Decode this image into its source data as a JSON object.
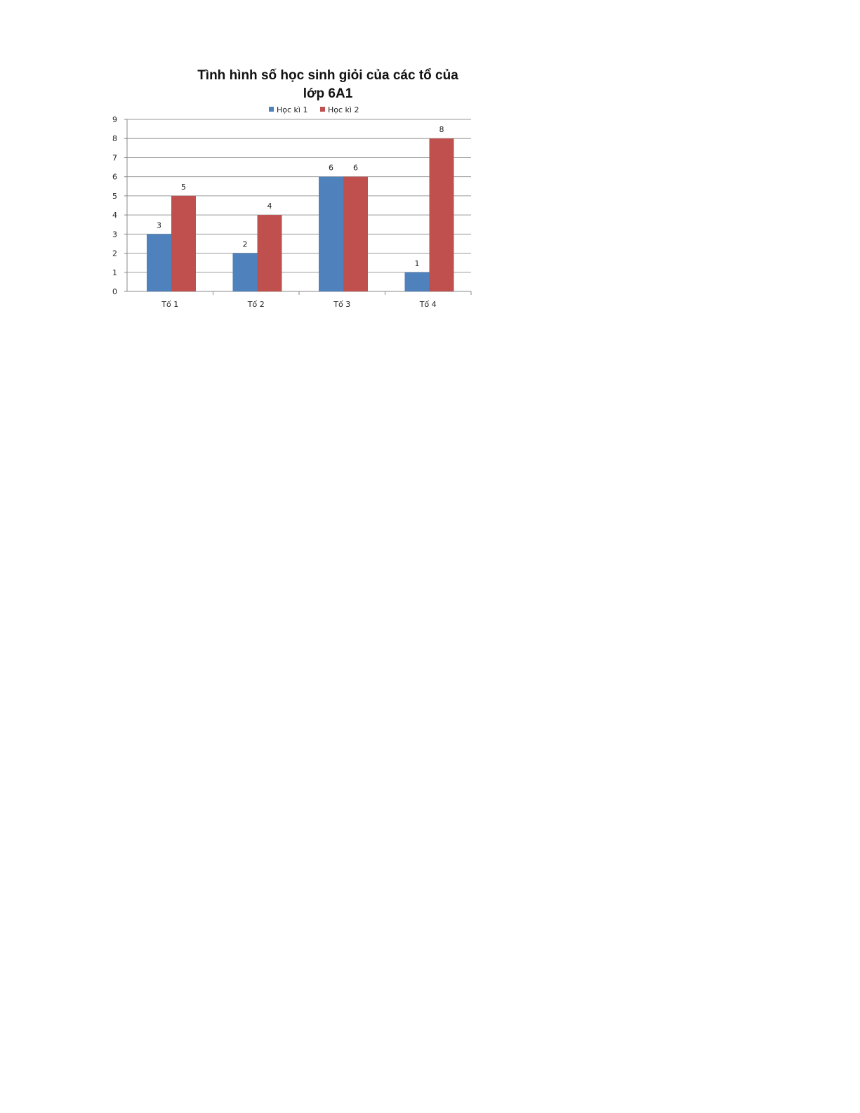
{
  "chart_data": {
    "type": "bar",
    "title": "Tình hình số học sinh giỏi của các tổ của lớp 6A1",
    "title_lines": [
      "Tình hình số học sinh giỏi của các tổ của",
      "lớp 6A1"
    ],
    "categories": [
      "Tố 1",
      "Tố 2",
      "Tố 3",
      "Tố 4"
    ],
    "series": [
      {
        "name": "Học kì 1",
        "values": [
          3,
          2,
          6,
          1
        ],
        "color": "#4F81BD"
      },
      {
        "name": "Học kì 2",
        "values": [
          5,
          4,
          6,
          8
        ],
        "color": "#C0504D"
      }
    ],
    "xlabel": "",
    "ylabel": "",
    "ylim": [
      0,
      9
    ],
    "yticks": [
      0,
      1,
      2,
      3,
      4,
      5,
      6,
      7,
      8,
      9
    ],
    "grid": true,
    "legend": "top",
    "data_labels": true
  }
}
